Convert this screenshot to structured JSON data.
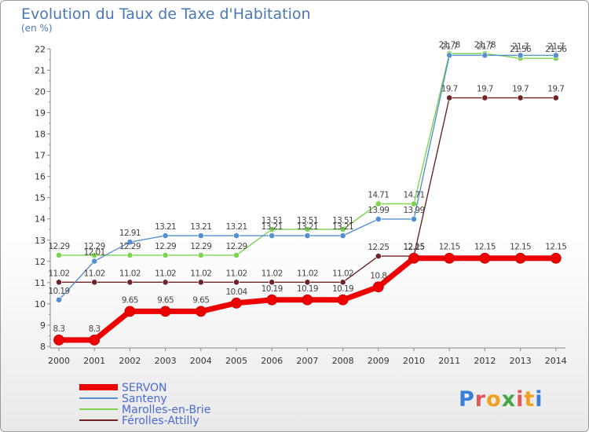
{
  "chart_data": {
    "type": "line",
    "title": "Evolution du Taux de Taxe d'Habitation",
    "unit_label": "(en %)",
    "x": [
      "2000",
      "2001",
      "2002",
      "2003",
      "2004",
      "2005",
      "2006",
      "2007",
      "2008",
      "2009",
      "2010",
      "2011",
      "2012",
      "2013",
      "2014"
    ],
    "yticks": [
      8,
      9,
      10,
      11,
      12,
      13,
      14,
      15,
      16,
      17,
      18,
      19,
      20,
      21,
      22
    ],
    "ylim": [
      8,
      22
    ],
    "series": [
      {
        "name": "SERVON",
        "color": "#ee0000",
        "values": [
          8.3,
          8.3,
          9.65,
          9.65,
          9.65,
          10.04,
          10.19,
          10.19,
          10.19,
          10.8,
          12.15,
          12.15,
          12.15,
          12.15,
          12.15
        ]
      },
      {
        "name": "Santeny",
        "color": "#5590d0",
        "values": [
          10.19,
          12.01,
          12.91,
          13.21,
          13.21,
          13.21,
          13.21,
          13.21,
          13.21,
          13.99,
          13.99,
          21.7,
          21.7,
          21.7,
          21.7
        ]
      },
      {
        "name": "Marolles-en-Brie",
        "color": "#7dd34e",
        "values": [
          12.29,
          12.29,
          12.29,
          12.29,
          12.29,
          12.29,
          13.51,
          13.51,
          13.51,
          14.71,
          14.71,
          21.78,
          21.78,
          21.56,
          21.56
        ]
      },
      {
        "name": "Férolles-Attilly",
        "color": "#6e2424",
        "values": [
          11.02,
          11.02,
          11.02,
          11.02,
          11.02,
          11.02,
          11.02,
          11.02,
          11.02,
          12.25,
          12.25,
          19.7,
          19.7,
          19.7,
          19.7
        ]
      }
    ]
  },
  "logo": {
    "text": "Proxiti"
  }
}
